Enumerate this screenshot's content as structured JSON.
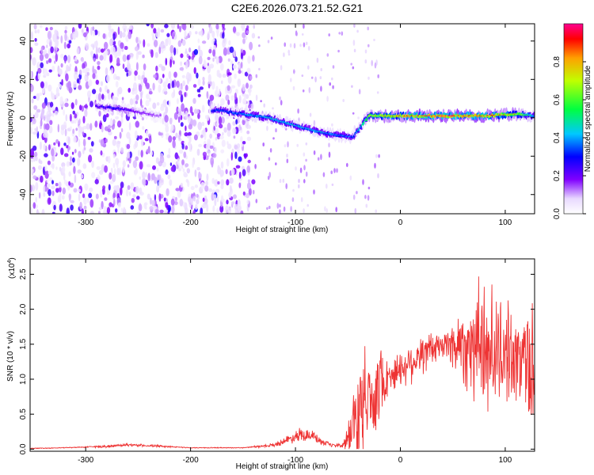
{
  "title": "C2E6.2026.073.21.52.G21",
  "chart_data": [
    {
      "type": "heatmap",
      "xlabel": "Height of straight line (km)",
      "ylabel": "Frequency (Hz)",
      "xlim": [
        -353,
        128
      ],
      "ylim": [
        -50,
        49
      ],
      "xticks": [
        -300,
        -200,
        -100,
        0,
        100
      ],
      "yticks": [
        -40,
        -20,
        0,
        20,
        40
      ],
      "colorbar": {
        "label": "Normalized spectral amplitude",
        "range": [
          0.0,
          1.0
        ],
        "ticks": [
          0.0,
          0.2,
          0.4,
          0.6,
          0.8
        ],
        "colors": [
          "#ffffff",
          "#8000ff",
          "#0000ff",
          "#00d0ff",
          "#00ff40",
          "#c0ff00",
          "#ffb000",
          "#ff0000",
          "#ff00a0"
        ]
      },
      "ridge": {
        "x": [
          -290,
          -270,
          -250,
          -230,
          -175,
          -150,
          -125,
          -100,
          -80,
          -60,
          -45,
          -30,
          0,
          40,
          80,
          110,
          128
        ],
        "frequency": [
          6,
          5,
          3,
          1,
          4,
          2,
          0,
          -4,
          -7,
          -9,
          -10,
          1,
          1,
          1,
          1,
          2,
          1
        ],
        "amplitude": [
          0.25,
          0.3,
          0.2,
          0.15,
          0.35,
          0.4,
          0.45,
          0.45,
          0.45,
          0.4,
          0.35,
          0.7,
          0.85,
          0.95,
          0.9,
          0.75,
          0.45
        ]
      },
      "noise_region": [
        -353,
        -140
      ]
    },
    {
      "type": "line",
      "xlabel": "Height of straight line (km)",
      "ylabel": "SNR (10 * v/v)",
      "yscale_label": "(x10",
      "yscale_exponent": "4",
      "xlim": [
        -353,
        128
      ],
      "ylim": [
        -0.03,
        2.72
      ],
      "xticks": [
        -300,
        -200,
        -100,
        0,
        100
      ],
      "yticks": [
        "0.0",
        "0.5",
        "1.0",
        "1.5",
        "2.0",
        "2.5"
      ],
      "ytick_values": [
        0,
        0.5,
        1.0,
        1.5,
        2.0,
        2.5
      ],
      "series": [
        {
          "color": "#ee3333",
          "x": [
            -353,
            -320,
            -280,
            -260,
            -240,
            -200,
            -150,
            -120,
            -105,
            -95,
            -85,
            -75,
            -65,
            -55,
            -50,
            -45,
            -40,
            -35,
            -30,
            -25,
            -20,
            -15,
            -10,
            -5,
            0,
            10,
            20,
            30,
            40,
            50,
            60,
            70,
            80,
            90,
            100,
            110,
            120,
            128
          ],
          "values": [
            0.01,
            0.02,
            0.04,
            0.06,
            0.05,
            0.02,
            0.02,
            0.06,
            0.15,
            0.22,
            0.2,
            0.1,
            0.05,
            0.05,
            0.15,
            0.35,
            0.5,
            0.6,
            0.7,
            0.85,
            0.95,
            1.0,
            1.05,
            1.1,
            1.15,
            1.25,
            1.35,
            1.42,
            1.48,
            1.5,
            1.5,
            1.48,
            1.45,
            1.42,
            1.38,
            1.3,
            1.25,
            1.2
          ],
          "peak_spread": [
            0,
            0,
            0.02,
            0.02,
            0.02,
            0,
            0,
            0.03,
            0.08,
            0.12,
            0.1,
            0.05,
            0.03,
            0.04,
            0.3,
            0.6,
            0.8,
            0.9,
            0.9,
            0.8,
            0.6,
            0.4,
            0.3,
            0.3,
            0.3,
            0.35,
            0.35,
            0.3,
            0.25,
            0.4,
            0.7,
            0.9,
            1.15,
            1.0,
            0.8,
            0.75,
            0.9,
            1.3
          ]
        }
      ]
    }
  ]
}
